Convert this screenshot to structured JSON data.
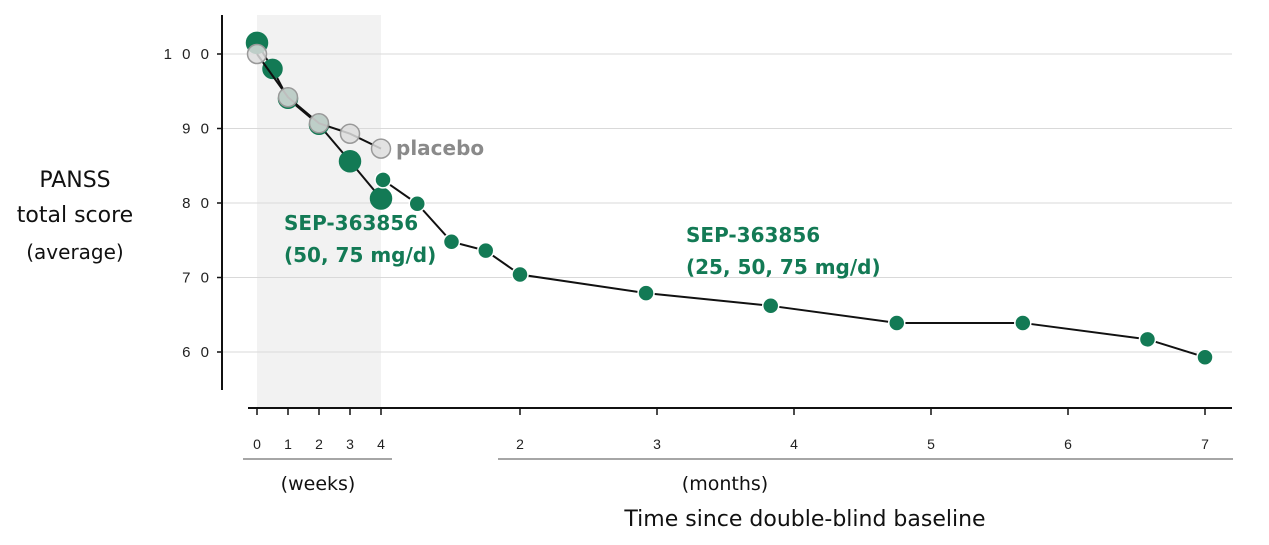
{
  "colors": {
    "treatment": "#137a55",
    "placebo_fill": "#dddddd",
    "placebo_stroke": "#999999",
    "placebo_text": "#8a8a8a",
    "shade": "#f2f2f2",
    "gridline": "#d9d9d9",
    "line": "#111111"
  },
  "chart_data": {
    "type": "line",
    "ylabel": [
      "PANSS",
      "total score",
      "(average)"
    ],
    "xlabel": "Time since double-blind baseline",
    "ylim": [
      55,
      103
    ],
    "yticks": [
      {
        "value": 100,
        "label": "1 0 0"
      },
      {
        "value": 90,
        "label": "9 0"
      },
      {
        "value": 80,
        "label": "8 0"
      },
      {
        "value": 70,
        "label": "7 0"
      },
      {
        "value": 60,
        "label": "6 0"
      }
    ],
    "grid": true,
    "shaded_region": {
      "from_week": 0,
      "to_week": 4
    },
    "x_segments": [
      {
        "unit": "weeks",
        "label": "(weeks)",
        "ticks": [
          0,
          1,
          2,
          3,
          4
        ],
        "tick_labels": [
          "0",
          "1",
          "2",
          "3",
          "4"
        ]
      },
      {
        "unit": "months",
        "label": "(months)",
        "ticks": [
          2,
          3,
          4,
          5,
          6,
          7
        ],
        "tick_labels": [
          "2",
          "3",
          "4",
          "5",
          "6",
          "7"
        ]
      }
    ],
    "series": [
      {
        "name": "SEP-363856 (50, 75 mg/d)",
        "label_lines": [
          "SEP-363856",
          "(50, 75 mg/d)"
        ],
        "segment": "weeks",
        "x": [
          0,
          0.5,
          1,
          2,
          3,
          4
        ],
        "y": [
          101.5,
          98,
          94,
          90.5,
          85.6,
          80.6
        ]
      },
      {
        "name": "placebo",
        "label_lines": [
          "placebo"
        ],
        "segment": "weeks",
        "x": [
          0,
          1,
          2,
          3,
          4
        ],
        "y": [
          100,
          94.2,
          90.7,
          89.3,
          87.3
        ]
      },
      {
        "name": "SEP-363856 (25, 50, 75 mg/d)",
        "label_lines": [
          "SEP-363856",
          "(25, 50, 75 mg/d)"
        ],
        "segment": "months",
        "x": [
          1.0,
          1.25,
          1.5,
          1.75,
          2.0,
          2.92,
          3.83,
          4.75,
          5.67,
          6.58,
          7.0
        ],
        "y": [
          83.1,
          79.9,
          74.8,
          73.6,
          70.4,
          67.9,
          66.2,
          63.9,
          63.9,
          61.7,
          59.3
        ]
      }
    ]
  }
}
